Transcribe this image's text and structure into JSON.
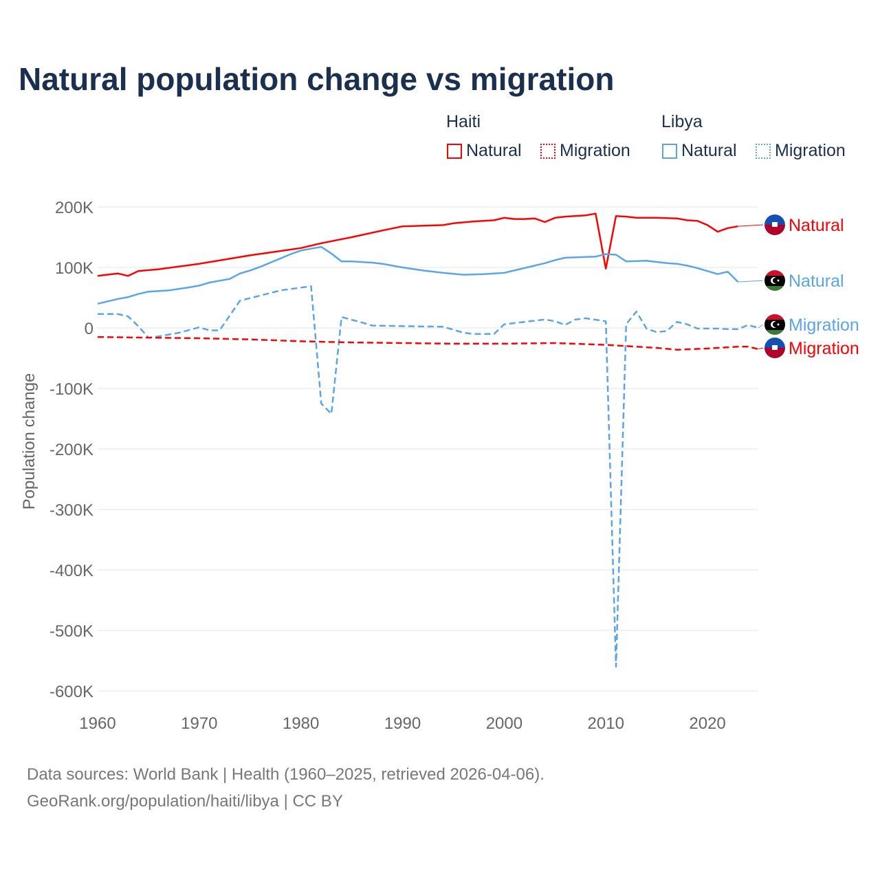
{
  "title": "Natural population change vs migration",
  "legend": {
    "groups": [
      {
        "name": "Haiti",
        "color": "#ff0000",
        "items": [
          "Natural",
          "Migration"
        ]
      },
      {
        "name": "Libya",
        "color": "#5aa5e8",
        "items": [
          "Natural",
          "Migration"
        ]
      }
    ]
  },
  "source": {
    "line1": "Data sources: World Bank | Health (1960–2025, retrieved 2026-04-06).",
    "line2": "GeoRank.org/population/haiti/libya | CC BY"
  },
  "chart_data": {
    "type": "line",
    "title": "Natural population change vs migration",
    "xlabel": "",
    "ylabel": "Population change",
    "xlim": [
      1960,
      2025
    ],
    "ylim": [
      -600000,
      200000
    ],
    "xticks": [
      1960,
      1970,
      1980,
      1990,
      2000,
      2010,
      2020
    ],
    "yticks": [
      {
        "v": 200000,
        "l": "200K"
      },
      {
        "v": 100000,
        "l": "100K"
      },
      {
        "v": 0,
        "l": "0"
      },
      {
        "v": -100000,
        "l": "-100K"
      },
      {
        "v": -200000,
        "l": "-200K"
      },
      {
        "v": -300000,
        "l": "-300K"
      },
      {
        "v": -400000,
        "l": "-400K"
      },
      {
        "v": -500000,
        "l": "-500K"
      },
      {
        "v": -600000,
        "l": "-600K"
      }
    ],
    "grid": true,
    "series": [
      {
        "name": "Haiti Natural",
        "label": "Natural",
        "country": "Haiti",
        "color": "#ff0000",
        "dash": false,
        "points": [
          [
            1960,
            86000
          ],
          [
            1962,
            90000
          ],
          [
            1963,
            86000
          ],
          [
            1964,
            94000
          ],
          [
            1966,
            97000
          ],
          [
            1970,
            106000
          ],
          [
            1975,
            120000
          ],
          [
            1980,
            132000
          ],
          [
            1982,
            140000
          ],
          [
            1985,
            150000
          ],
          [
            1988,
            161000
          ],
          [
            1990,
            168000
          ],
          [
            1994,
            170000
          ],
          [
            1995,
            173000
          ],
          [
            1997,
            176000
          ],
          [
            1999,
            178000
          ],
          [
            2000,
            182000
          ],
          [
            2001,
            180000
          ],
          [
            2002,
            180000
          ],
          [
            2003,
            181000
          ],
          [
            2004,
            175000
          ],
          [
            2005,
            182000
          ],
          [
            2006,
            184000
          ],
          [
            2008,
            186000
          ],
          [
            2009,
            189000
          ],
          [
            2010,
            98000
          ],
          [
            2011,
            185000
          ],
          [
            2012,
            184000
          ],
          [
            2013,
            182000
          ],
          [
            2015,
            182000
          ],
          [
            2017,
            181000
          ],
          [
            2018,
            178000
          ],
          [
            2019,
            177000
          ],
          [
            2020,
            170000
          ],
          [
            2021,
            159000
          ],
          [
            2022,
            165000
          ],
          [
            2023,
            168000
          ]
        ]
      },
      {
        "name": "Libya Natural",
        "label": "Natural",
        "country": "Libya",
        "color": "#5aa5e8",
        "dash": false,
        "points": [
          [
            1960,
            40000
          ],
          [
            1962,
            48000
          ],
          [
            1963,
            51000
          ],
          [
            1964,
            56000
          ],
          [
            1965,
            60000
          ],
          [
            1967,
            62000
          ],
          [
            1969,
            67000
          ],
          [
            1970,
            70000
          ],
          [
            1971,
            75000
          ],
          [
            1973,
            81000
          ],
          [
            1974,
            90000
          ],
          [
            1975,
            95000
          ],
          [
            1976,
            101000
          ],
          [
            1977,
            108000
          ],
          [
            1978,
            115000
          ],
          [
            1979,
            122000
          ],
          [
            1980,
            128000
          ],
          [
            1981,
            131000
          ],
          [
            1982,
            134000
          ],
          [
            1983,
            123000
          ],
          [
            1984,
            110000
          ],
          [
            1985,
            110000
          ],
          [
            1987,
            108000
          ],
          [
            1988,
            106000
          ],
          [
            1990,
            100000
          ],
          [
            1992,
            95000
          ],
          [
            1994,
            91000
          ],
          [
            1996,
            88000
          ],
          [
            1998,
            89000
          ],
          [
            2000,
            91000
          ],
          [
            2002,
            99000
          ],
          [
            2004,
            107000
          ],
          [
            2005,
            112000
          ],
          [
            2006,
            116000
          ],
          [
            2009,
            118000
          ],
          [
            2010,
            122000
          ],
          [
            2011,
            121000
          ],
          [
            2012,
            110000
          ],
          [
            2014,
            111000
          ],
          [
            2016,
            107000
          ],
          [
            2017,
            106000
          ],
          [
            2018,
            103000
          ],
          [
            2019,
            99000
          ],
          [
            2020,
            94000
          ],
          [
            2021,
            89000
          ],
          [
            2022,
            93000
          ],
          [
            2023,
            76000
          ]
        ]
      },
      {
        "name": "Libya Migration",
        "label": "Migration",
        "country": "Libya",
        "color": "#5aa5e8",
        "dash": true,
        "points": [
          [
            1960,
            23000
          ],
          [
            1962,
            23000
          ],
          [
            1963,
            19000
          ],
          [
            1964,
            3000
          ],
          [
            1965,
            -16000
          ],
          [
            1966,
            -14000
          ],
          [
            1968,
            -8000
          ],
          [
            1970,
            1000
          ],
          [
            1971,
            -4000
          ],
          [
            1972,
            -4000
          ],
          [
            1974,
            45000
          ],
          [
            1978,
            62000
          ],
          [
            1981,
            69000
          ],
          [
            1982,
            -125000
          ],
          [
            1983,
            -142000
          ],
          [
            1984,
            18000
          ],
          [
            1986,
            9000
          ],
          [
            1987,
            4000
          ],
          [
            1990,
            3000
          ],
          [
            1994,
            2000
          ],
          [
            1996,
            -8000
          ],
          [
            1997,
            -10000
          ],
          [
            1999,
            -10000
          ],
          [
            2000,
            6000
          ],
          [
            2004,
            14000
          ],
          [
            2005,
            11000
          ],
          [
            2006,
            5000
          ],
          [
            2007,
            14000
          ],
          [
            2008,
            16000
          ],
          [
            2010,
            11000
          ],
          [
            2011,
            -560000
          ],
          [
            2012,
            6000
          ],
          [
            2013,
            27000
          ],
          [
            2014,
            -1000
          ],
          [
            2015,
            -7000
          ],
          [
            2016,
            -5000
          ],
          [
            2017,
            10000
          ],
          [
            2018,
            6000
          ],
          [
            2019,
            -1000
          ],
          [
            2021,
            -1000
          ],
          [
            2022,
            -2000
          ],
          [
            2023,
            -2000
          ],
          [
            2024,
            5000
          ],
          [
            2025,
            0
          ]
        ]
      },
      {
        "name": "Haiti Migration",
        "label": "Migration",
        "country": "Haiti",
        "color": "#ff0000",
        "dash": true,
        "points": [
          [
            1960,
            -15000
          ],
          [
            1965,
            -16000
          ],
          [
            1970,
            -17000
          ],
          [
            1975,
            -19000
          ],
          [
            1980,
            -22000
          ],
          [
            1985,
            -24000
          ],
          [
            1990,
            -25000
          ],
          [
            1995,
            -26000
          ],
          [
            2000,
            -26000
          ],
          [
            2005,
            -25000
          ],
          [
            2010,
            -28000
          ],
          [
            2015,
            -33000
          ],
          [
            2017,
            -36000
          ],
          [
            2020,
            -34000
          ],
          [
            2023,
            -31000
          ],
          [
            2024,
            -31000
          ],
          [
            2025,
            -35000
          ]
        ]
      }
    ]
  }
}
